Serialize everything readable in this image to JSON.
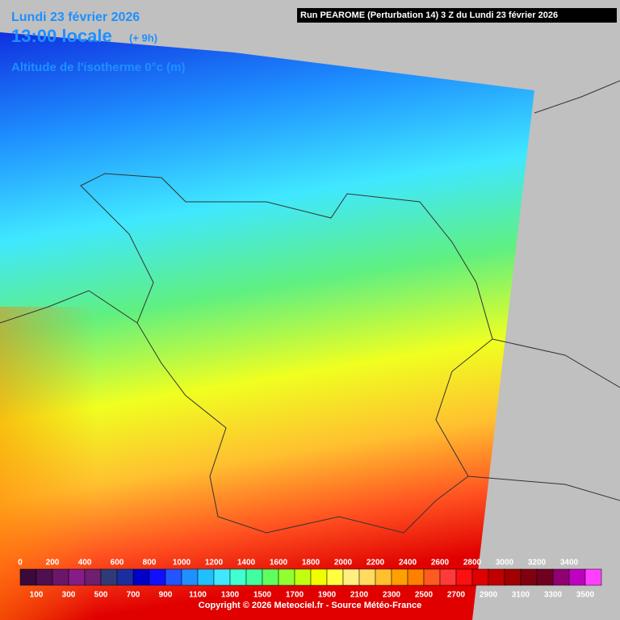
{
  "header": {
    "date": "Lundi 23 février 2026",
    "time": "13:00 locale",
    "offset": "(+ 9h)",
    "field": "Altitude de l'isotherme 0°c (m)",
    "run": "Run PEAROME (Perturbation 14) 3 Z du Lundi 23 février 2026"
  },
  "legend": {
    "top_labels": [
      0,
      200,
      400,
      600,
      800,
      1000,
      1200,
      1400,
      1600,
      1800,
      2000,
      2200,
      2400,
      2600,
      2800,
      3000,
      3200,
      3400
    ],
    "bottom_labels": [
      100,
      300,
      500,
      700,
      900,
      1100,
      1300,
      1500,
      1700,
      1900,
      2100,
      2300,
      2500,
      2700,
      2900,
      3100,
      3300,
      3500
    ],
    "colors": [
      "#3a0a3a",
      "#4e104e",
      "#6a176a",
      "#861c86",
      "#6e1f6e",
      "#2f3a78",
      "#1a2ea0",
      "#0000c8",
      "#1010ff",
      "#2255ff",
      "#1e90ff",
      "#20c0ff",
      "#40e8ff",
      "#40ffd0",
      "#40ffa0",
      "#60ff60",
      "#90ff30",
      "#c0ff10",
      "#f0ff00",
      "#ffff40",
      "#ffef80",
      "#ffdc60",
      "#ffc030",
      "#ffa000",
      "#ff8000",
      "#ff5a20",
      "#ff3a3a",
      "#ff1010",
      "#e00000",
      "#c00000",
      "#a00000",
      "#800010",
      "#700020",
      "#900070",
      "#c000c0",
      "#ff40ff"
    ]
  },
  "footer": {
    "copyright": "Copyright © 2026 Meteociel.fr - Source Météo-France"
  }
}
